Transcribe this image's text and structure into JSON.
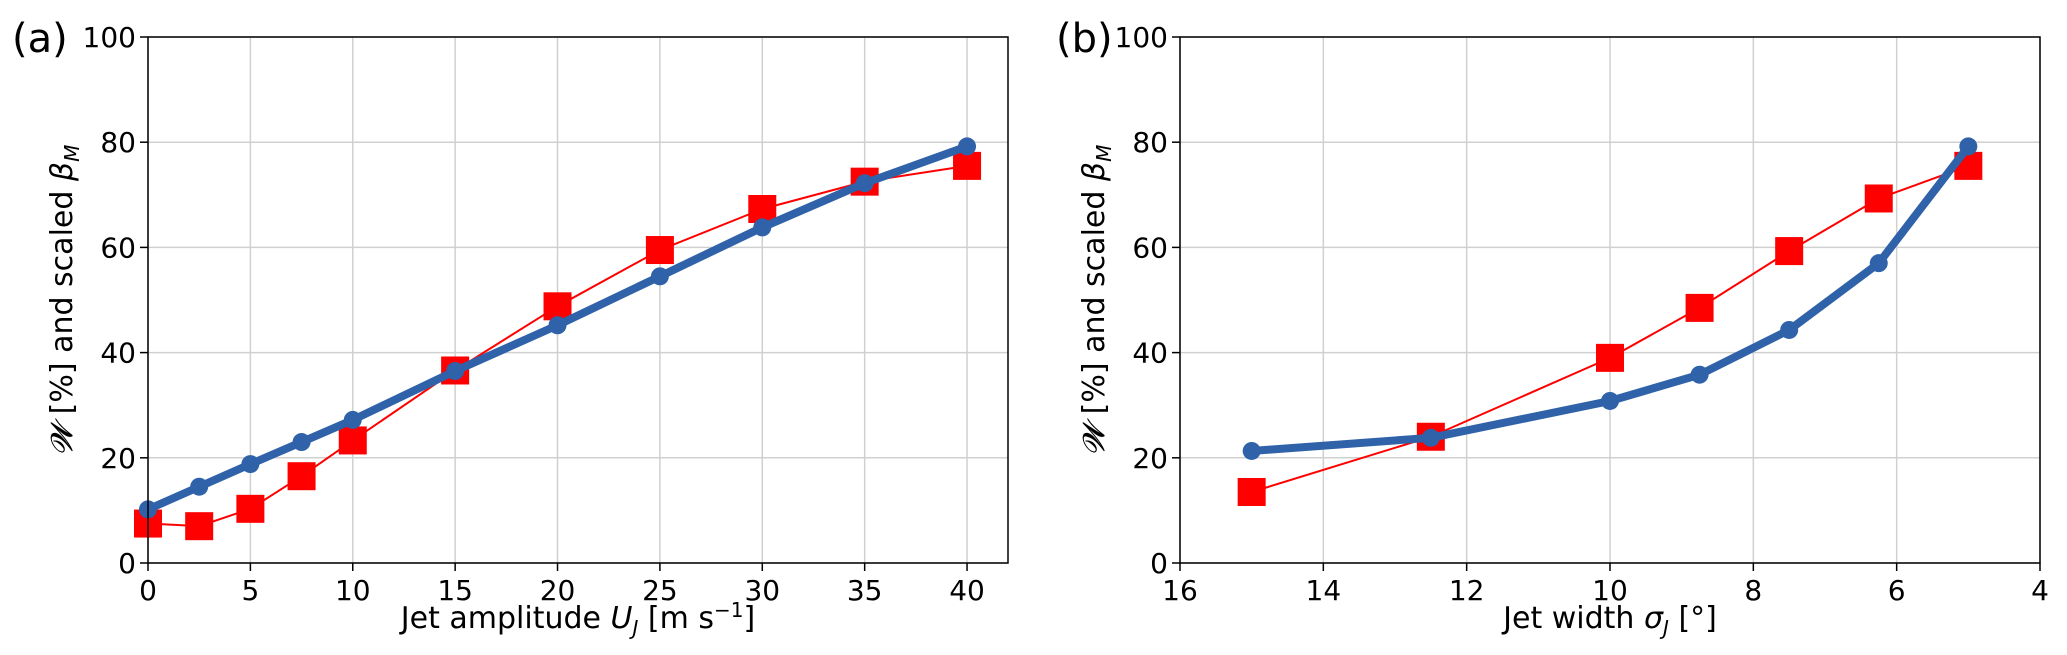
{
  "chart_data": [
    {
      "type": "line",
      "panel_label": "(a)",
      "xlabel": "Jet amplitude U_J [m s⁻¹]",
      "ylabel": "𝓦 [%] and scaled β_M",
      "xlim": [
        0,
        42
      ],
      "ylim": [
        0,
        100
      ],
      "xticks": [
        0,
        5,
        10,
        15,
        20,
        25,
        30,
        35,
        40
      ],
      "yticks": [
        0,
        20,
        40,
        60,
        80,
        100
      ],
      "grid": true,
      "series": [
        {
          "color": "#ff0000",
          "marker": "square",
          "x": [
            0,
            2.5,
            5,
            7.5,
            10,
            15,
            20,
            25,
            30,
            35,
            40
          ],
          "y": [
            7.5,
            7,
            10.3,
            16.5,
            23.3,
            36.6,
            48.8,
            59.5,
            67.3,
            72.5,
            75.5
          ]
        },
        {
          "color": "#2f62a8",
          "marker": "circle",
          "x": [
            0,
            2.5,
            5,
            7.5,
            10,
            15,
            20,
            25,
            30,
            35,
            40
          ],
          "y": [
            10.2,
            14.5,
            18.8,
            23.0,
            27.2,
            36.5,
            45.2,
            54.5,
            63.8,
            72.2,
            79.2
          ]
        }
      ]
    },
    {
      "type": "line",
      "panel_label": "(b)",
      "xlabel": "Jet width σ_J [°]",
      "ylabel": "𝓦 [%] and scaled β_M",
      "xlim": [
        16,
        4
      ],
      "ylim": [
        0,
        100
      ],
      "xticks": [
        16,
        14,
        12,
        10,
        8,
        6,
        4
      ],
      "yticks": [
        0,
        20,
        40,
        60,
        80,
        100
      ],
      "grid": true,
      "series": [
        {
          "color": "#ff0000",
          "marker": "square",
          "x": [
            15,
            12.5,
            10,
            8.75,
            7.5,
            6.25,
            5
          ],
          "y": [
            13.5,
            24.0,
            39.0,
            48.5,
            59.3,
            69.3,
            75.5
          ]
        },
        {
          "color": "#2f62a8",
          "marker": "circle",
          "x": [
            15,
            12.5,
            10,
            8.75,
            7.5,
            6.25,
            5
          ],
          "y": [
            21.3,
            23.8,
            30.8,
            35.8,
            44.3,
            57.0,
            79.2
          ]
        }
      ]
    }
  ]
}
